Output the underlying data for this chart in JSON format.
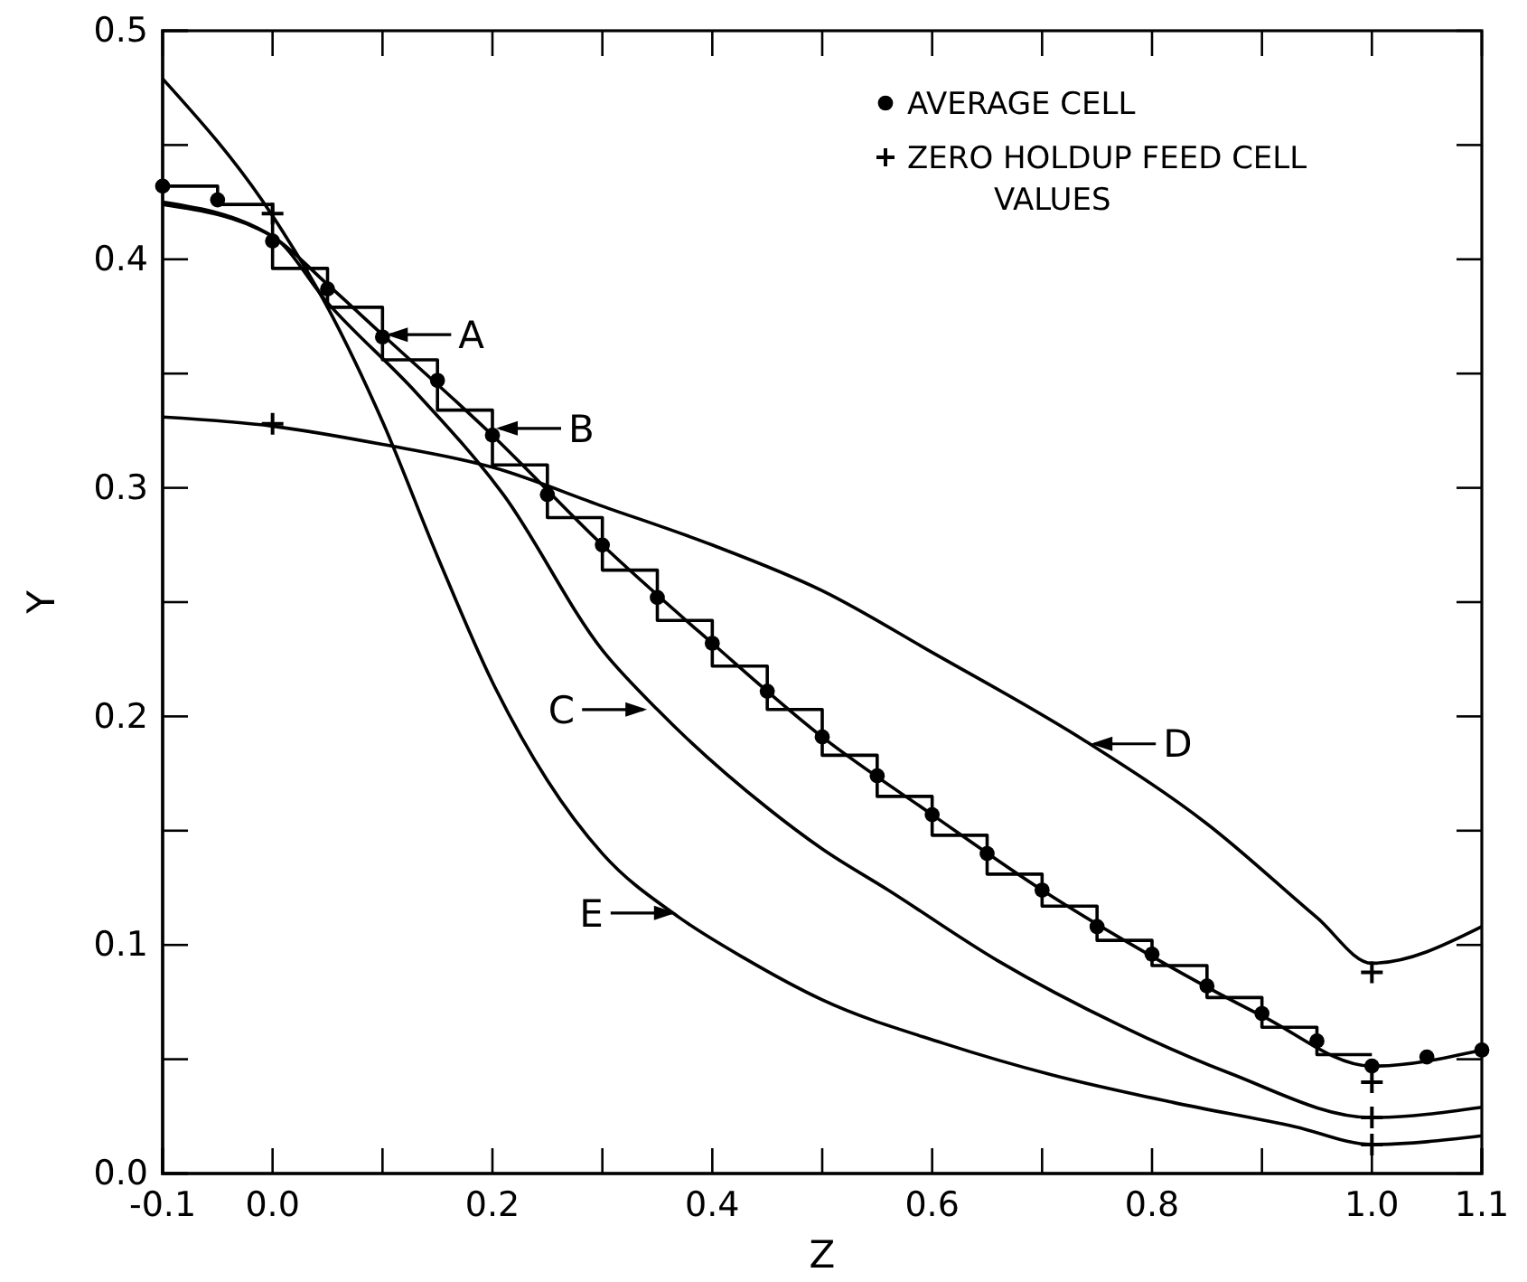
{
  "chart_data": {
    "type": "line",
    "xlabel": "Z",
    "ylabel": "Y",
    "xlim": [
      -0.1,
      1.1
    ],
    "ylim": [
      0,
      0.5
    ],
    "xticks": [
      {
        "value": -0.1,
        "label": "-0.1"
      },
      {
        "value": 0,
        "label": "0.0"
      },
      {
        "value": 0.1,
        "label": null
      },
      {
        "value": 0.2,
        "label": "0.2"
      },
      {
        "value": 0.3,
        "label": null
      },
      {
        "value": 0.4,
        "label": "0.4"
      },
      {
        "value": 0.5,
        "label": null
      },
      {
        "value": 0.6,
        "label": "0.6"
      },
      {
        "value": 0.7,
        "label": null
      },
      {
        "value": 0.8,
        "label": "0.8"
      },
      {
        "value": 0.9,
        "label": null
      },
      {
        "value": 1.0,
        "label": "1.0"
      },
      {
        "value": 1.1,
        "label": "1.1"
      }
    ],
    "yticks": [
      {
        "value": 0,
        "label": "0.0"
      },
      {
        "value": 0.05,
        "label": null
      },
      {
        "value": 0.1,
        "label": "0.1"
      },
      {
        "value": 0.15,
        "label": null
      },
      {
        "value": 0.2,
        "label": "0.2"
      },
      {
        "value": 0.25,
        "label": null
      },
      {
        "value": 0.3,
        "label": "0.3"
      },
      {
        "value": 0.35,
        "label": null
      },
      {
        "value": 0.4,
        "label": "0.4"
      },
      {
        "value": 0.45,
        "label": null
      },
      {
        "value": 0.5,
        "label": "0.5"
      }
    ],
    "grid": false,
    "legend": "top right",
    "series": [
      {
        "type": "step",
        "color": "#000000",
        "marker": "none",
        "x": [
          -0.1,
          -0.05,
          0,
          0.05,
          0.1,
          0.15,
          0.2,
          0.25,
          0.3,
          0.35,
          0.4,
          0.45,
          0.5,
          0.55,
          0.6,
          0.65,
          0.7,
          0.75,
          0.8,
          0.85,
          0.9,
          0.95,
          1.0
        ],
        "values": [
          0.432,
          0.424,
          0.396,
          0.379,
          0.356,
          0.334,
          0.31,
          0.287,
          0.264,
          0.242,
          0.222,
          0.203,
          0.183,
          0.165,
          0.148,
          0.131,
          0.117,
          0.102,
          0.091,
          0.077,
          0.064,
          0.052,
          0.052
        ]
      },
      {
        "color": "#000000",
        "marker": "none",
        "x": [
          -0.1,
          0,
          0.05,
          0.1,
          0.2,
          0.3,
          0.4,
          0.5,
          0.6,
          0.7,
          0.8,
          0.9,
          1.0,
          1.1
        ],
        "values": [
          0.425,
          0.41,
          0.389,
          0.367,
          0.323,
          0.275,
          0.232,
          0.191,
          0.157,
          0.124,
          0.095,
          0.069,
          0.047,
          0.054
        ]
      },
      {
        "color": "#000000",
        "marker": "none",
        "x": [
          -0.1,
          0,
          0.05,
          0.13,
          0.21,
          0.3,
          0.35,
          0.45,
          0.5,
          0.56,
          0.66,
          0.77,
          0.87,
          1.0,
          1.1
        ],
        "values": [
          0.424,
          0.41,
          0.381,
          0.342,
          0.297,
          0.229,
          0.203,
          0.16,
          0.142,
          0.124,
          0.093,
          0.065,
          0.044,
          0.0245,
          0.029
        ]
      },
      {
        "color": "#000000",
        "marker": "none",
        "x": [
          -0.1,
          0,
          0.1,
          0.2,
          0.3,
          0.4,
          0.5,
          0.6,
          0.74,
          0.85,
          0.95,
          1.0,
          1.1
        ],
        "values": [
          0.331,
          0.327,
          0.319,
          0.309,
          0.292,
          0.275,
          0.255,
          0.228,
          0.189,
          0.153,
          0.112,
          0.092,
          0.108
        ]
      },
      {
        "color": "#000000",
        "marker": "none",
        "x": [
          -0.1,
          0,
          0.05,
          0.1,
          0.15,
          0.2,
          0.25,
          0.3,
          0.37,
          0.43,
          0.5,
          0.61,
          0.71,
          0.82,
          0.93,
          1.0,
          1.1
        ],
        "values": [
          0.479,
          0.419,
          0.379,
          0.329,
          0.27,
          0.215,
          0.172,
          0.14,
          0.112,
          0.094,
          0.076,
          0.057,
          0.043,
          0.031,
          0.0205,
          0.0127,
          0.0165
        ]
      },
      {
        "type": "scatter",
        "name": "AVERAGE CELL",
        "color": "#000000",
        "marker": "circle",
        "x": [
          -0.1,
          -0.05,
          0,
          0.05,
          0.1,
          0.15,
          0.2,
          0.25,
          0.3,
          0.35,
          0.4,
          0.45,
          0.5,
          0.55,
          0.6,
          0.65,
          0.7,
          0.75,
          0.8,
          0.85,
          0.9,
          0.95,
          1.0,
          1.05,
          1.1
        ],
        "values": [
          0.432,
          0.426,
          0.408,
          0.387,
          0.366,
          0.347,
          0.323,
          0.297,
          0.275,
          0.252,
          0.232,
          0.211,
          0.191,
          0.174,
          0.157,
          0.14,
          0.124,
          0.108,
          0.096,
          0.082,
          0.07,
          0.058,
          0.047,
          0.051,
          0.054
        ]
      },
      {
        "type": "scatter",
        "name": "ZERO HOLDUP FEED CELL VALUES",
        "color": "#000000",
        "marker": "cross",
        "x": [
          0,
          0,
          1.0,
          1.0,
          1.0,
          1.0
        ],
        "values": [
          0.42,
          0.328,
          0.088,
          0.04,
          0.0245,
          0.0127
        ]
      }
    ],
    "annotations": [
      {
        "text": "A",
        "x": 0.1,
        "y": 0.367
      },
      {
        "text": "B",
        "x": 0.2,
        "y": 0.326
      },
      {
        "text": "C",
        "x": 0.344,
        "y": 0.203
      },
      {
        "text": "D",
        "x": 0.741,
        "y": 0.188
      },
      {
        "text": "E",
        "x": 0.37,
        "y": 0.114
      }
    ]
  }
}
